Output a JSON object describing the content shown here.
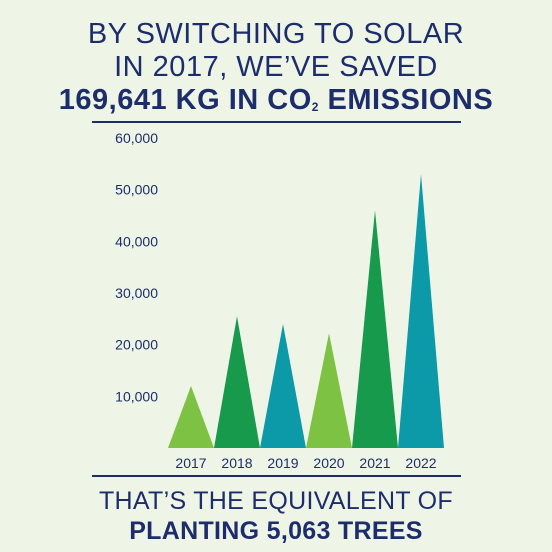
{
  "header": {
    "line1": "BY SWITCHING TO SOLAR",
    "line2": "IN 2017, WE’VE SAVED",
    "line3_main": "169,641 KG IN CO",
    "line3_sub": "2",
    "line3_end": " EMISSIONS"
  },
  "footer": {
    "line1": "THAT’S THE EQUIVALENT OF",
    "line2": "PLANTING 5,063 TREES"
  },
  "chart_data": {
    "type": "bar",
    "categories": [
      "2017",
      "2018",
      "2019",
      "2020",
      "2021",
      "2022"
    ],
    "values": [
      12000,
      25500,
      24000,
      22200,
      46000,
      53000
    ],
    "ylim": [
      0,
      60000
    ],
    "yticks": [
      10000,
      20000,
      30000,
      40000,
      50000,
      60000
    ],
    "ytick_labels": [
      "10,000",
      "20,000",
      "30,000",
      "40,000",
      "50,000",
      "60,000"
    ],
    "colors": [
      "#7dc243",
      "#179a4b",
      "#0c9aa8",
      "#7dc243",
      "#179a4b",
      "#0c9aa8"
    ],
    "grid": false,
    "legend": "none"
  }
}
